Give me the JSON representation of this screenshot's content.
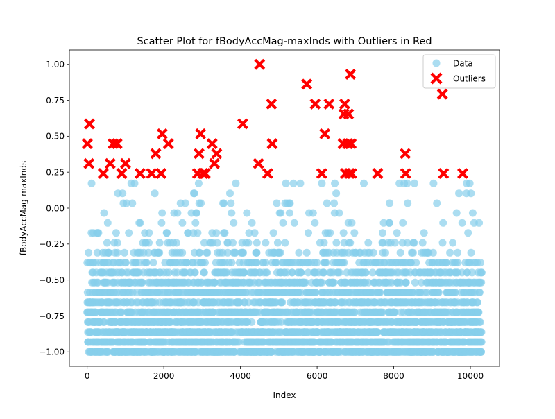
{
  "chart_data": {
    "type": "scatter",
    "title": "Scatter Plot for fBodyAccMag-maxInds with Outliers in Red",
    "xlabel": "Index",
    "ylabel": "fBodyAccMag-maxInds",
    "xlim": [
      -465,
      10760
    ],
    "ylim": [
      -1.1,
      1.1
    ],
    "xticks": [
      0,
      2000,
      4000,
      6000,
      8000,
      10000
    ],
    "xtick_labels": [
      "0",
      "2000",
      "4000",
      "6000",
      "8000",
      "10000"
    ],
    "yticks": [
      -1.0,
      -0.75,
      -0.5,
      -0.25,
      0.0,
      0.25,
      0.5,
      0.75,
      1.0
    ],
    "ytick_labels": [
      "−1.00",
      "−0.75",
      "−0.50",
      "−0.25",
      "0.00",
      "0.25",
      "0.50",
      "0.75",
      "1.00"
    ],
    "grid": false,
    "legend_position": "top-right",
    "legend": [
      {
        "label": "Data",
        "marker": "circle",
        "color": "#87ceeb"
      },
      {
        "label": "Outliers",
        "marker": "x",
        "color": "#ff0000"
      }
    ],
    "n_points": 10299,
    "y_levels": [
      -1.0,
      -0.931,
      -0.862,
      -0.793,
      -0.724,
      -0.655,
      -0.586,
      -0.517,
      -0.448,
      -0.379,
      -0.31,
      -0.241,
      -0.172,
      -0.103,
      -0.034,
      0.034,
      0.103,
      0.172
    ],
    "series": [
      {
        "name": "Data",
        "color": "#87ceeb",
        "description": "10299 points over integer indices 0-10298, values on the y_levels grid, densest from -1.0 to -0.4"
      },
      {
        "name": "Outliers",
        "color": "#ff0000",
        "points": [
          [
            5,
            0.448
          ],
          [
            45,
            0.31
          ],
          [
            60,
            0.586
          ],
          [
            420,
            0.241
          ],
          [
            600,
            0.31
          ],
          [
            680,
            0.448
          ],
          [
            780,
            0.448
          ],
          [
            900,
            0.241
          ],
          [
            1000,
            0.31
          ],
          [
            1380,
            0.241
          ],
          [
            1680,
            0.241
          ],
          [
            1790,
            0.379
          ],
          [
            1930,
            0.241
          ],
          [
            1960,
            0.517
          ],
          [
            2120,
            0.448
          ],
          [
            2880,
            0.241
          ],
          [
            2920,
            0.379
          ],
          [
            2960,
            0.517
          ],
          [
            3020,
            0.241
          ],
          [
            3080,
            0.241
          ],
          [
            3260,
            0.448
          ],
          [
            3320,
            0.31
          ],
          [
            3380,
            0.379
          ],
          [
            4060,
            0.586
          ],
          [
            4470,
            0.31
          ],
          [
            4500,
            1.0
          ],
          [
            4710,
            0.241
          ],
          [
            4810,
            0.724
          ],
          [
            4830,
            0.448
          ],
          [
            5730,
            0.862
          ],
          [
            5950,
            0.724
          ],
          [
            6120,
            0.241
          ],
          [
            6200,
            0.517
          ],
          [
            6310,
            0.724
          ],
          [
            6680,
            0.448
          ],
          [
            6700,
            0.655
          ],
          [
            6720,
            0.724
          ],
          [
            6740,
            0.241
          ],
          [
            6800,
            0.448
          ],
          [
            6820,
            0.655
          ],
          [
            6850,
            0.241
          ],
          [
            6870,
            0.931
          ],
          [
            6890,
            0.448
          ],
          [
            6900,
            0.241
          ],
          [
            7580,
            0.241
          ],
          [
            8300,
            0.379
          ],
          [
            8310,
            0.241
          ],
          [
            9270,
            0.793
          ],
          [
            9300,
            0.241
          ],
          [
            9800,
            0.241
          ]
        ]
      }
    ]
  }
}
